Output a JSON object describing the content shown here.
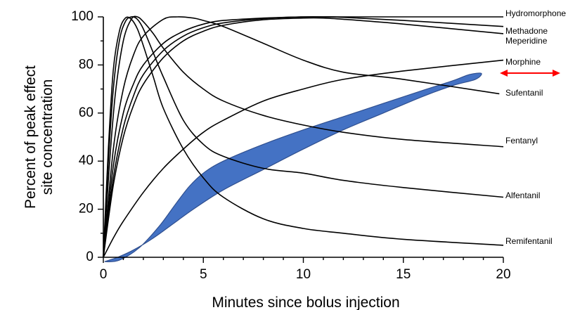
{
  "chart_data": {
    "type": "line",
    "title": "",
    "xlabel": "Minutes since bolus injection",
    "ylabel_lines": [
      "Percent of peak effect",
      "site concentration"
    ],
    "xlim": [
      0,
      20
    ],
    "ylim": [
      0,
      100
    ],
    "xticks": [
      0,
      5,
      10,
      15,
      20
    ],
    "yticks": [
      0,
      20,
      40,
      60,
      80,
      100
    ],
    "grid": false,
    "legend": "labels at right end of each curve",
    "series": [
      {
        "name": "Hydromorphone",
        "x": [
          0,
          0.5,
          1,
          1.5,
          2,
          3,
          4,
          5,
          6,
          8,
          10,
          12,
          15,
          20
        ],
        "y": [
          0,
          38,
          60,
          72,
          80,
          89,
          94,
          97,
          98.5,
          99.5,
          100,
          100,
          100,
          100
        ]
      },
      {
        "name": "Methadone",
        "x": [
          0,
          0.5,
          1,
          1.5,
          2,
          3,
          4,
          5,
          6,
          8,
          10,
          11,
          12,
          15,
          20
        ],
        "y": [
          0,
          33,
          54,
          67,
          76,
          86,
          92,
          95.5,
          97.5,
          99.3,
          100,
          100,
          99.8,
          98.5,
          96
        ]
      },
      {
        "name": "Meperidine",
        "x": [
          0,
          0.5,
          1,
          1.5,
          2,
          3,
          4,
          5,
          6,
          8,
          10,
          11,
          12,
          15,
          20
        ],
        "y": [
          0,
          30,
          50,
          63,
          72,
          83,
          90,
          94,
          96.5,
          98.8,
          99.5,
          99.5,
          99,
          97,
          93
        ]
      },
      {
        "name": "Morphine",
        "x": [
          0,
          0.5,
          1,
          2,
          3,
          4,
          5,
          6,
          8,
          10,
          12,
          15,
          20
        ],
        "y": [
          0,
          8,
          15,
          27,
          37,
          45,
          52,
          57,
          65,
          70,
          74,
          77.5,
          82
        ]
      },
      {
        "name": "Sufentanil",
        "x": [
          0,
          0.5,
          1,
          1.5,
          2,
          3,
          3.7,
          4.5,
          5,
          6,
          8,
          10,
          12,
          15,
          19.8
        ],
        "y": [
          0,
          45,
          70,
          84,
          92,
          99,
          100,
          99.5,
          98.5,
          96,
          89,
          82,
          77,
          74,
          68
        ]
      },
      {
        "name": "Fentanyl",
        "x": [
          0,
          0.3,
          0.6,
          1,
          1.4,
          1.7,
          2,
          2.5,
          3,
          4,
          5,
          6,
          8,
          10,
          12,
          15,
          20
        ],
        "y": [
          0,
          38,
          68,
          90,
          99,
          100,
          98,
          93,
          87,
          77,
          70,
          65,
          59,
          55,
          52,
          49,
          46
        ]
      },
      {
        "name": "Alfentanil",
        "x": [
          0,
          0.25,
          0.5,
          0.8,
          1.1,
          1.4,
          1.7,
          2,
          2.5,
          3,
          4,
          5,
          6,
          8,
          10,
          12,
          15,
          20
        ],
        "y": [
          0,
          40,
          70,
          90,
          98,
          100,
          99,
          95,
          85,
          75,
          57,
          47,
          42,
          37,
          35,
          32,
          29,
          25
        ]
      },
      {
        "name": "Remifentanil",
        "x": [
          0,
          0.25,
          0.5,
          0.8,
          1.1,
          1.4,
          1.7,
          2,
          2.5,
          3,
          4,
          5,
          6,
          8,
          10,
          12,
          15,
          20
        ],
        "y": [
          0,
          45,
          78,
          94,
          99.5,
          99,
          95,
          88,
          75,
          62,
          45,
          33,
          25,
          16,
          12,
          10,
          7.5,
          5
        ]
      }
    ],
    "highlight_region": {
      "color": "#4472C4",
      "stroke": "#2F4F8F",
      "outline": [
        [
          0.1,
          -1.8
        ],
        [
          0.8,
          -1.2
        ],
        [
          1.8,
          4
        ],
        [
          2.8,
          13
        ],
        [
          3.6,
          22
        ],
        [
          4.3,
          29.5
        ],
        [
          5,
          35
        ],
        [
          6,
          40
        ],
        [
          8,
          47
        ],
        [
          10,
          53
        ],
        [
          12,
          58.5
        ],
        [
          14,
          64
        ],
        [
          16,
          69.5
        ],
        [
          17.5,
          73.5
        ],
        [
          18.3,
          76
        ],
        [
          18.9,
          76.5
        ],
        [
          18.6,
          74
        ],
        [
          17.5,
          71.5
        ],
        [
          16,
          67
        ],
        [
          14,
          60
        ],
        [
          12,
          53
        ],
        [
          10,
          45
        ],
        [
          8,
          36.5
        ],
        [
          6,
          28
        ],
        [
          4.5,
          20
        ],
        [
          3.5,
          14
        ],
        [
          2.5,
          8
        ],
        [
          1.5,
          3
        ],
        [
          0.8,
          0.3
        ],
        [
          0.3,
          -1.2
        ]
      ]
    },
    "arrow": {
      "color": "#FF0000",
      "direction": "double-headed horizontal"
    }
  }
}
